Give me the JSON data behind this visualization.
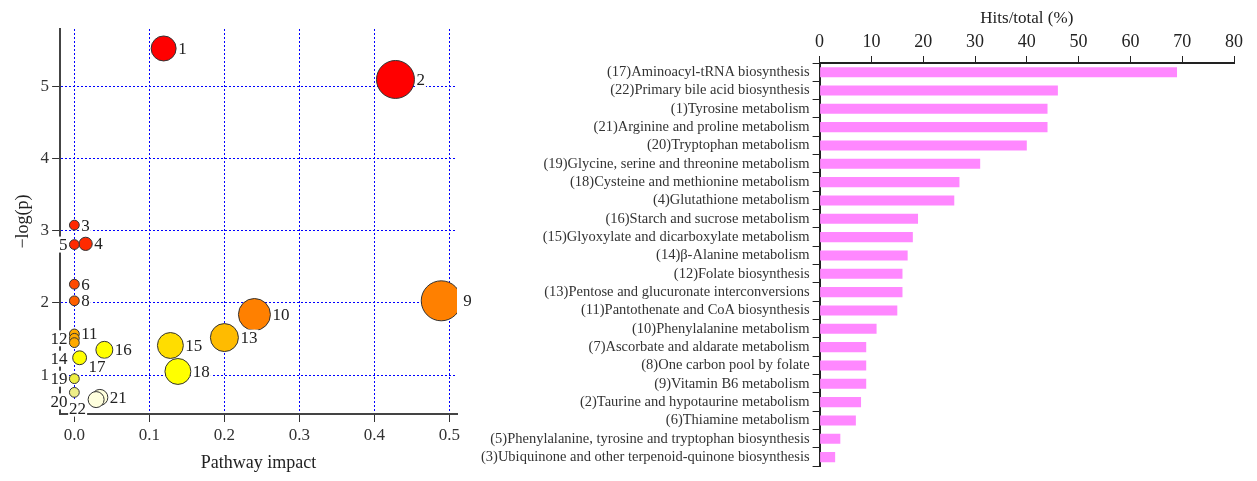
{
  "chart_data": [
    {
      "type": "bubble",
      "xlabel": "Pathway impact",
      "ylabel": "−log(p)",
      "x": [
        0.119,
        0.428,
        0,
        0.015,
        0,
        0,
        0,
        0.489,
        0.24,
        0,
        0,
        0.2,
        0,
        0.128,
        0.04,
        0.007,
        0.138,
        0,
        0,
        0.034,
        0.029
      ],
      "values": [
        5.53,
        5.1,
        3.08,
        2.82,
        2.81,
        2.26,
        2.03,
        2.03,
        1.84,
        1.57,
        1.51,
        1.52,
        1.45,
        1.41,
        1.35,
        1.24,
        1.05,
        0.95,
        0.76,
        0.69,
        0.66
      ],
      "sizes": [
        0.39,
        0.9,
        0.06,
        0.11,
        0.06,
        0.06,
        0.06,
        1,
        0.64,
        0.06,
        0.06,
        0.49,
        0.06,
        0.42,
        0.18,
        0.12,
        0.42,
        0.06,
        0.06,
        0.16,
        0.16
      ],
      "colors": [
        "#ff0000",
        "#ff0000",
        "#ff2a00",
        "#ff2a00",
        "#ff2a00",
        "#ff4a00",
        "#ff6000",
        "#ff8000",
        "#ff8000",
        "#ffaa00",
        "#ffaa00",
        "#ffbb00",
        "#ffaa00",
        "#ffdd00",
        "#ffff00",
        "#ffff00",
        "#ffff00",
        "#eeee44",
        "#eeee88",
        "#ffffdd",
        "#ffffdd"
      ],
      "annotations": [
        {
          "text": "1",
          "x": 0.119,
          "y": 5.53
        },
        {
          "text": "2",
          "x": 0.428,
          "y": 5.1
        },
        {
          "text": "3",
          "x": 0,
          "y": 3.08
        },
        {
          "text": "4",
          "x": 0.015,
          "y": 2.82
        },
        {
          "text": "5",
          "x": 0,
          "y": 2.81
        },
        {
          "text": "6",
          "x": 0,
          "y": 2.26
        },
        {
          "text": "8",
          "x": 0,
          "y": 2.03
        },
        {
          "text": "9",
          "x": 0.489,
          "y": 2.03
        },
        {
          "text": "10",
          "x": 0.24,
          "y": 1.84
        },
        {
          "text": "11",
          "x": 0,
          "y": 1.57
        },
        {
          "text": "12",
          "x": 0,
          "y": 1.51
        },
        {
          "text": "13",
          "x": 0.2,
          "y": 1.52
        },
        {
          "text": "14",
          "x": 0,
          "y": 1.45
        },
        {
          "text": "15",
          "x": 0.128,
          "y": 1.41
        },
        {
          "text": "16",
          "x": 0.04,
          "y": 1.35
        },
        {
          "text": "17",
          "x": 0.007,
          "y": 1.24
        },
        {
          "text": "18",
          "x": 0.138,
          "y": 1.05
        },
        {
          "text": "19",
          "x": 0,
          "y": 0.95
        },
        {
          "text": "20",
          "x": 0,
          "y": 0.76
        },
        {
          "text": "21",
          "x": 0.034,
          "y": 0.69
        },
        {
          "text": "22",
          "x": 0.029,
          "y": 0.66
        }
      ],
      "xlim": [
        -0.019,
        0.51
      ],
      "ylim": [
        0.46,
        5.8
      ],
      "xticks": [
        {
          "value": 0,
          "label": "0.0"
        },
        0.1,
        0.2,
        0.3,
        0.4,
        0.5
      ],
      "yticks": [
        1,
        2,
        3,
        4,
        5
      ],
      "grid": true,
      "line_style": "dotted",
      "marker": "circle"
    },
    {
      "type": "bar",
      "orientation": "horizontal",
      "xlabel": "Hits/total (%)",
      "categories": [
        "(17)Aminoacyl-tRNA biosynthesis",
        "(22)Primary bile acid biosynthesis",
        "(1)Tyrosine metabolism",
        "(21)Arginine and proline metabolism",
        "(20)Tryptophan metabolism",
        "(19)Glycine, serine and threonine metabolism",
        "(18)Cysteine and methionine metabolism",
        "(4)Glutathione metabolism",
        "(16)Starch and sucrose metabolism",
        "(15)Glyoxylate and dicarboxylate metabolism",
        "(14)β-Alanine metabolism",
        "(12)Folate biosynthesis",
        "(13)Pentose and glucuronate interconversions",
        "(11)Pantothenate and CoA biosynthesis",
        "(10)Phenylalanine metabolism",
        "(7)Ascorbate and aldarate metabolism",
        "(8)One carbon pool by folate",
        "(9)Vitamin B6 metabolism",
        "(2)Taurine and hypotaurine metabolism",
        "(6)Thiamine metabolism",
        "(5)Phenylalanine, tyrosine and tryptophan biosynthesis",
        "(3)Ubiquinone and other terpenoid-quinone biosynthesis"
      ],
      "values": [
        69,
        46,
        44,
        44,
        40,
        31,
        27,
        26,
        19,
        18,
        17,
        16,
        16,
        15,
        11,
        9,
        9,
        9,
        8,
        7,
        4,
        3
      ],
      "color": "#ff88ff",
      "xlim": [
        0,
        80
      ],
      "xticks": [
        0,
        10,
        20,
        30,
        40,
        50,
        60,
        70,
        80
      ],
      "grid": false
    }
  ]
}
